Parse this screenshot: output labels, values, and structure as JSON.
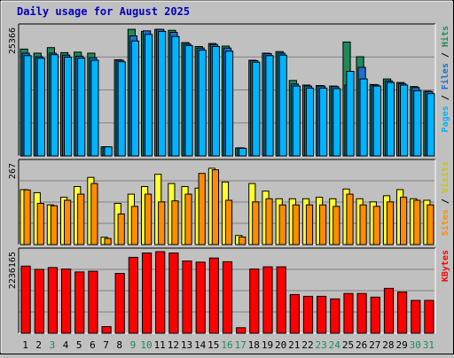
{
  "colors": {
    "background": "#c0c0c0",
    "panel": "#c0c0c0",
    "title": "#0000c0",
    "hits": "#1f8a5a",
    "files": "#1e6fd0",
    "pages": "#00b4ff",
    "visits": "#ffff33",
    "sites": "#ff8c00",
    "kbytes": "#ff0000",
    "weekend": "#1f8a5a"
  },
  "chart_data": {
    "type": "bar",
    "title": "Daily usage for August 2025",
    "categories": [
      "1",
      "2",
      "3",
      "4",
      "5",
      "6",
      "7",
      "8",
      "9",
      "10",
      "11",
      "12",
      "13",
      "14",
      "15",
      "16",
      "17",
      "18",
      "19",
      "20",
      "21",
      "22",
      "23",
      "24",
      "25",
      "26",
      "27",
      "28",
      "29",
      "30",
      "31"
    ],
    "weekend_days": [
      "3",
      "9",
      "10",
      "16",
      "17",
      "23",
      "24",
      "30",
      "31"
    ],
    "panels": [
      {
        "id": "requests",
        "ymax_label": "25366",
        "ymax": 25366,
        "legend": [
          "Pages",
          "Files",
          "Hits"
        ],
        "series": [
          {
            "name": "Hits",
            "values": [
              21100,
              20300,
              21400,
              20400,
              20500,
              20300,
              1800,
              19000,
              25000,
              24600,
              25000,
              24800,
              22400,
              21600,
              22200,
              21700,
              1600,
              18900,
              20300,
              20600,
              14900,
              14000,
              13900,
              13800,
              22500,
              19600,
              14100,
              15200,
              14500,
              13700,
              12800
            ]
          },
          {
            "name": "Files",
            "values": [
              20300,
              19600,
              20300,
              19900,
              19700,
              19400,
              1800,
              18900,
              23700,
              24700,
              25000,
              24400,
              22100,
              21300,
              22000,
              21300,
              1600,
              18800,
              20200,
              20300,
              14200,
              13800,
              13800,
              13700,
              14000,
              17500,
              14000,
              14800,
              14300,
              13500,
              12700
            ]
          },
          {
            "name": "Pages",
            "values": [
              19800,
              19300,
              20000,
              19500,
              19300,
              18900,
              1800,
              18600,
              22700,
              24000,
              24600,
              23600,
              21800,
              20900,
              21600,
              20700,
              1500,
              18500,
              19800,
              19900,
              13800,
              13400,
              13400,
              13300,
              16700,
              15200,
              13800,
              14500,
              14000,
              12900,
              12300
            ]
          }
        ]
      },
      {
        "id": "visits",
        "ymax_label": "267",
        "ymax": 267,
        "legend": [
          "Sites",
          "Visits"
        ],
        "series": [
          {
            "name": "Visits",
            "values": [
              180,
              170,
              130,
              155,
              190,
              220,
              24,
              135,
              165,
              190,
              230,
              200,
              190,
              185,
              250,
              205,
              30,
              200,
              175,
              150,
              150,
              150,
              155,
              150,
              182,
              150,
              140,
              160,
              180,
              150,
              145
            ]
          },
          {
            "name": "Sites",
            "values": [
              179,
              135,
              127,
              145,
              165,
              200,
              20,
              100,
              125,
              165,
              140,
              143,
              165,
              233,
              245,
              145,
              25,
              140,
              150,
              130,
              130,
              130,
              130,
              125,
              165,
              130,
              125,
              140,
              155,
              145,
              130
            ]
          }
        ]
      },
      {
        "id": "kbytes",
        "ymax_label": "2236165",
        "ymax": 2236165,
        "legend": [
          "KBytes"
        ],
        "series": [
          {
            "name": "KBytes",
            "values": [
              1840000,
              1750000,
              1800000,
              1760000,
              1680000,
              1700000,
              180000,
              1640000,
              2080000,
              2200000,
              2236165,
              2200000,
              1980000,
              1950000,
              2060000,
              1960000,
              150000,
              1760000,
              1820000,
              1820000,
              1060000,
              1010000,
              1010000,
              940000,
              1090000,
              1090000,
              990000,
              1230000,
              1130000,
              900000,
              900000
            ]
          }
        ]
      }
    ]
  }
}
